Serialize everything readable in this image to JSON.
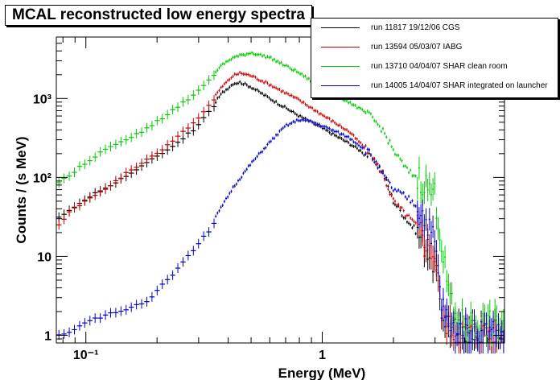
{
  "chart_data": {
    "type": "scatter",
    "title": "MCAL reconstructed low energy spectra",
    "xlabel": "Energy (MeV)",
    "ylabel": "Counts / (s MeV)",
    "x_scale": "log",
    "y_scale": "log",
    "xlim": [
      0.075,
      5.9
    ],
    "ylim": [
      0.8,
      6000
    ],
    "grid": false,
    "legend_position": "top-right",
    "x_ticks": [
      {
        "value": 0.1,
        "label": "10⁻¹"
      },
      {
        "value": 1,
        "label": "1"
      }
    ],
    "y_ticks": [
      {
        "value": 1,
        "label": "1"
      },
      {
        "value": 10,
        "label": "10"
      },
      {
        "value": 100,
        "label": "10²"
      },
      {
        "value": 1000,
        "label": "10³"
      }
    ],
    "series": [
      {
        "name": "run 11817 19/12/06 CGS",
        "color": "#000000",
        "points": [
          [
            0.075,
            30
          ],
          [
            0.085,
            40
          ],
          [
            0.1,
            55
          ],
          [
            0.12,
            75
          ],
          [
            0.15,
            110
          ],
          [
            0.18,
            155
          ],
          [
            0.22,
            230
          ],
          [
            0.28,
            400
          ],
          [
            0.33,
            700
          ],
          [
            0.38,
            1200
          ],
          [
            0.42,
            1550
          ],
          [
            0.45,
            1600
          ],
          [
            0.5,
            1400
          ],
          [
            0.6,
            1000
          ],
          [
            0.8,
            600
          ],
          [
            1.0,
            420
          ],
          [
            1.3,
            270
          ],
          [
            1.6,
            180
          ],
          [
            1.8,
            120
          ],
          [
            2.0,
            50
          ],
          [
            2.3,
            28
          ],
          [
            2.6,
            18
          ],
          [
            3.0,
            8
          ],
          [
            3.2,
            2
          ],
          [
            3.5,
            1.2
          ],
          [
            4.0,
            1.1
          ],
          [
            5.0,
            1.1
          ],
          [
            5.8,
            1.1
          ]
        ]
      },
      {
        "name": "run 13594 05/03/07 IABG",
        "color": "#cc0000",
        "points": [
          [
            0.075,
            25
          ],
          [
            0.085,
            38
          ],
          [
            0.1,
            52
          ],
          [
            0.12,
            72
          ],
          [
            0.15,
            120
          ],
          [
            0.18,
            170
          ],
          [
            0.22,
            260
          ],
          [
            0.28,
            480
          ],
          [
            0.33,
            850
          ],
          [
            0.38,
            1450
          ],
          [
            0.42,
            1950
          ],
          [
            0.45,
            2100
          ],
          [
            0.5,
            1950
          ],
          [
            0.6,
            1500
          ],
          [
            0.8,
            950
          ],
          [
            1.0,
            620
          ],
          [
            1.3,
            380
          ],
          [
            1.6,
            200
          ],
          [
            1.8,
            110
          ],
          [
            2.0,
            50
          ],
          [
            2.3,
            32
          ],
          [
            2.6,
            22
          ],
          [
            3.0,
            10
          ],
          [
            3.2,
            2
          ],
          [
            3.5,
            1.2
          ],
          [
            4.0,
            1.1
          ],
          [
            5.0,
            1.1
          ],
          [
            5.8,
            1.1
          ]
        ]
      },
      {
        "name": "run 13710 04/04/07 SHAR clean room",
        "color": "#00cc00",
        "points": [
          [
            0.075,
            85
          ],
          [
            0.085,
            110
          ],
          [
            0.1,
            160
          ],
          [
            0.12,
            230
          ],
          [
            0.15,
            310
          ],
          [
            0.18,
            420
          ],
          [
            0.22,
            650
          ],
          [
            0.28,
            1100
          ],
          [
            0.33,
            1800
          ],
          [
            0.38,
            2700
          ],
          [
            0.42,
            3300
          ],
          [
            0.5,
            3800
          ],
          [
            0.6,
            3300
          ],
          [
            0.8,
            2100
          ],
          [
            1.0,
            1350
          ],
          [
            1.3,
            900
          ],
          [
            1.6,
            600
          ],
          [
            1.8,
            400
          ],
          [
            2.0,
            220
          ],
          [
            2.3,
            120
          ],
          [
            2.6,
            95
          ],
          [
            3.0,
            60
          ],
          [
            3.3,
            7
          ],
          [
            3.6,
            1.7
          ],
          [
            4.0,
            1.4
          ],
          [
            5.0,
            1.4
          ],
          [
            5.8,
            1.4
          ]
        ]
      },
      {
        "name": "run 14005 14/04/07 SHAR integrated on launcher",
        "color": "#0000cc",
        "points": [
          [
            0.075,
            1
          ],
          [
            0.085,
            1.1
          ],
          [
            0.1,
            1.5
          ],
          [
            0.12,
            1.8
          ],
          [
            0.15,
            2.2
          ],
          [
            0.18,
            2.8
          ],
          [
            0.22,
            5.2
          ],
          [
            0.25,
            8
          ],
          [
            0.28,
            12
          ],
          [
            0.33,
            22
          ],
          [
            0.38,
            45
          ],
          [
            0.42,
            75
          ],
          [
            0.5,
            150
          ],
          [
            0.6,
            280
          ],
          [
            0.7,
            450
          ],
          [
            0.8,
            540
          ],
          [
            0.9,
            510
          ],
          [
            1.0,
            450
          ],
          [
            1.3,
            320
          ],
          [
            1.6,
            200
          ],
          [
            1.8,
            110
          ],
          [
            2.0,
            70
          ],
          [
            2.3,
            55
          ],
          [
            2.6,
            40
          ],
          [
            3.0,
            15
          ],
          [
            3.2,
            2.5
          ],
          [
            3.5,
            1.2
          ],
          [
            4.0,
            1.1
          ],
          [
            5.0,
            1.1
          ],
          [
            5.8,
            1.1
          ]
        ]
      }
    ]
  }
}
